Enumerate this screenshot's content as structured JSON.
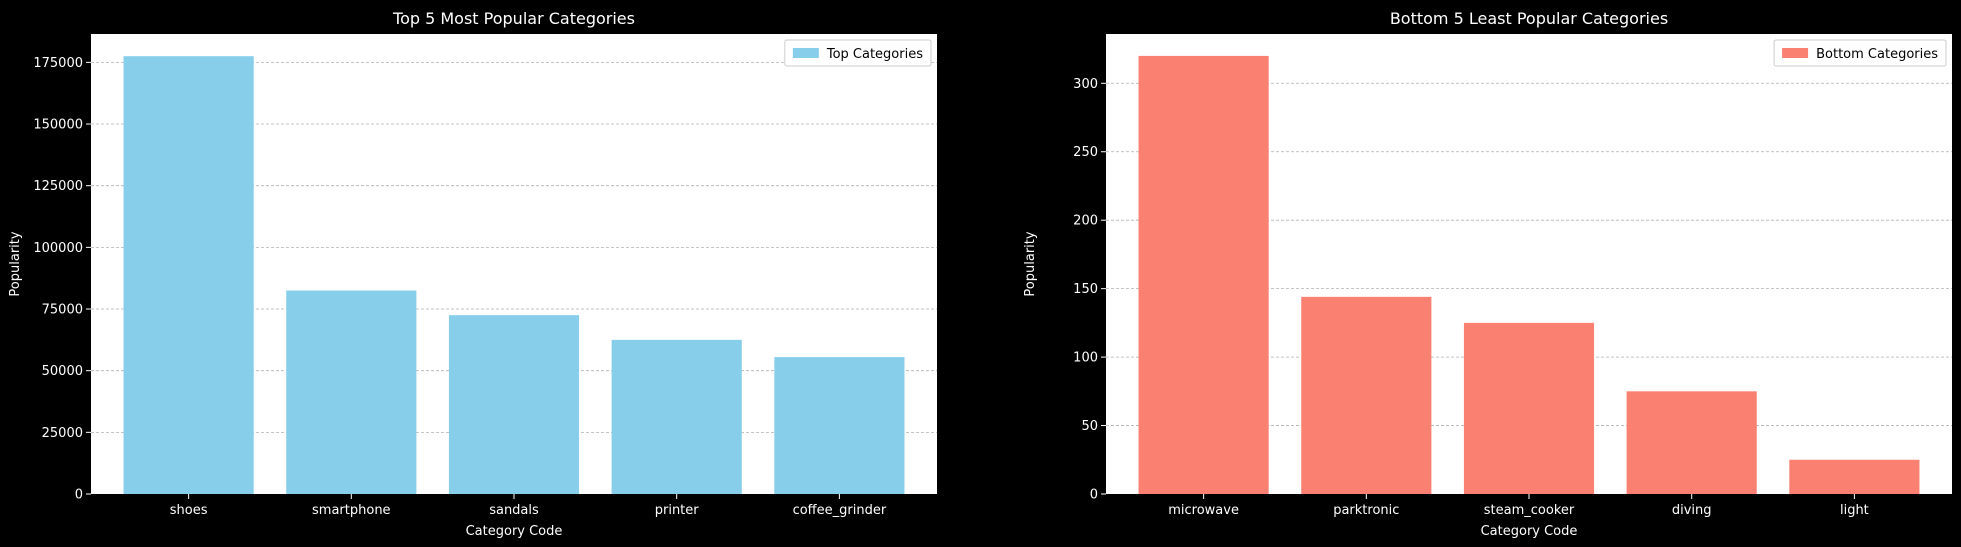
{
  "figure": {
    "background": "#000000",
    "text_color": "#ffffff"
  },
  "chart_data": [
    {
      "type": "bar",
      "title": "Top 5 Most Popular Categories",
      "xlabel": "Category Code",
      "ylabel": "Popularity",
      "categories": [
        "shoes",
        "smartphone",
        "sandals",
        "printer",
        "coffee_grinder"
      ],
      "series": [
        {
          "name": "Top Categories",
          "values": [
            177500,
            82500,
            72500,
            62500,
            55500
          ],
          "color": "#87ceeb"
        }
      ],
      "ylim": [
        0,
        186500
      ],
      "yticks": [
        0,
        25000,
        50000,
        75000,
        100000,
        125000,
        150000,
        175000
      ],
      "ytick_labels": [
        "0",
        "25000",
        "50000",
        "75000",
        "100000",
        "125000",
        "150000",
        "175000"
      ],
      "grid": "y-dashed",
      "legend_position": "top-right"
    },
    {
      "type": "bar",
      "title": "Bottom 5 Least Popular Categories",
      "xlabel": "Category Code",
      "ylabel": "Popularity",
      "categories": [
        "microwave",
        "parktronic",
        "steam_cooker",
        "diving",
        "light"
      ],
      "series": [
        {
          "name": "Bottom Categories",
          "values": [
            320,
            144,
            125,
            75,
            25
          ],
          "color": "#fa8072"
        }
      ],
      "ylim": [
        0,
        336
      ],
      "yticks": [
        0,
        50,
        100,
        150,
        200,
        250,
        300
      ],
      "ytick_labels": [
        "0",
        "50",
        "100",
        "150",
        "200",
        "250",
        "300"
      ],
      "grid": "y-dashed",
      "legend_position": "top-right"
    }
  ]
}
